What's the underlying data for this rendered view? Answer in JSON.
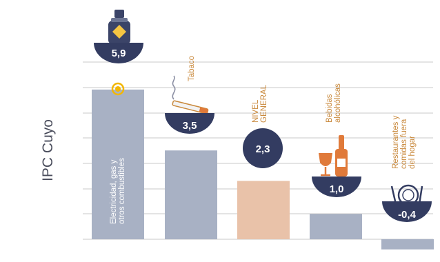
{
  "chart_data": {
    "type": "bar",
    "ylabel": "IPC Cuyo",
    "categories": [
      "Electricidad, gas y otros combustibles",
      "Tabaco",
      "NIVEL GENERAL",
      "Bebidas alcohólicas",
      "Restaurantes y comidas fuera del hogar"
    ],
    "values": [
      5.9,
      3.5,
      2.3,
      1.0,
      -0.4
    ],
    "value_labels": [
      "5,9",
      "3,5",
      "2,3",
      "1,0",
      "-0,4"
    ],
    "highlight_category": "NIVEL GENERAL",
    "icons": [
      "gas-cylinder-icon",
      "cigarette-icon",
      "",
      "wine-bottle-icon",
      "plate-cutlery-icon"
    ],
    "grid": true,
    "colors": {
      "bar": "#a8b1c4",
      "highlight_bar": "#e9c2a9",
      "bowl": "#333c61",
      "label": "#c9893c",
      "axis_text": "#4a4d5c",
      "grid": "#c8c8c8"
    }
  }
}
